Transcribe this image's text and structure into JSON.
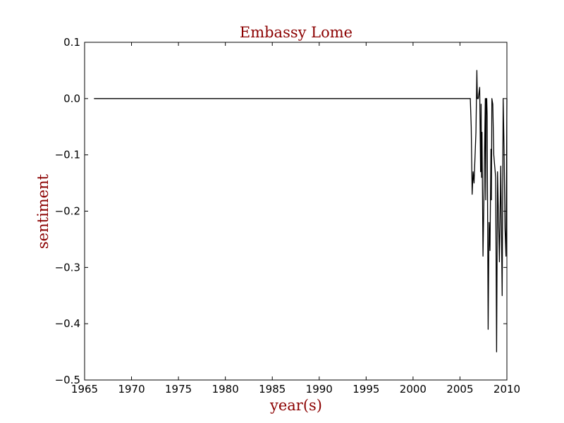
{
  "chart_data": {
    "type": "line",
    "title": "Embassy Lome",
    "xlabel": "year(s)",
    "ylabel": "sentiment",
    "xlim": [
      1965,
      2010
    ],
    "ylim": [
      -0.5,
      0.1
    ],
    "x_ticks": [
      "1965",
      "1970",
      "1975",
      "1980",
      "1985",
      "1990",
      "1995",
      "2000",
      "2005",
      "2010"
    ],
    "y_ticks": [
      "0.1",
      "0.0",
      "−0.1",
      "−0.2",
      "−0.3",
      "−0.4",
      "−0.5"
    ],
    "grid": false,
    "series": [
      {
        "color": "#000000",
        "x": [
          1966.0,
          2006.1,
          2006.2,
          2006.3,
          2006.4,
          2006.5,
          2006.7,
          2006.8,
          2006.85,
          2006.95,
          2007.1,
          2007.2,
          2007.25,
          2007.3,
          2007.35,
          2007.45,
          2007.55,
          2007.65,
          2007.7,
          2007.75,
          2007.8,
          2007.85,
          2007.9,
          2008.0,
          2008.1,
          2008.2,
          2008.3,
          2008.35,
          2008.4,
          2008.5,
          2008.6,
          2008.7,
          2008.75,
          2008.8,
          2008.9,
          2009.0,
          2009.2,
          2009.35,
          2009.4,
          2009.5,
          2009.6,
          2009.7,
          2009.8,
          2009.9,
          2009.95,
          2010.0
        ],
        "y": [
          0.0,
          0.0,
          -0.05,
          -0.17,
          -0.13,
          -0.15,
          -0.06,
          0.05,
          0.0,
          0.0,
          0.02,
          -0.13,
          -0.01,
          -0.14,
          -0.06,
          -0.28,
          -0.18,
          -0.06,
          0.0,
          -0.18,
          0.0,
          0.0,
          -0.03,
          -0.41,
          -0.22,
          -0.27,
          -0.09,
          -0.18,
          0.0,
          -0.01,
          -0.1,
          -0.12,
          -0.13,
          -0.14,
          -0.45,
          -0.13,
          -0.29,
          -0.12,
          -0.2,
          -0.35,
          0.0,
          -0.09,
          -0.23,
          -0.28,
          -0.16,
          0.0
        ]
      }
    ]
  }
}
